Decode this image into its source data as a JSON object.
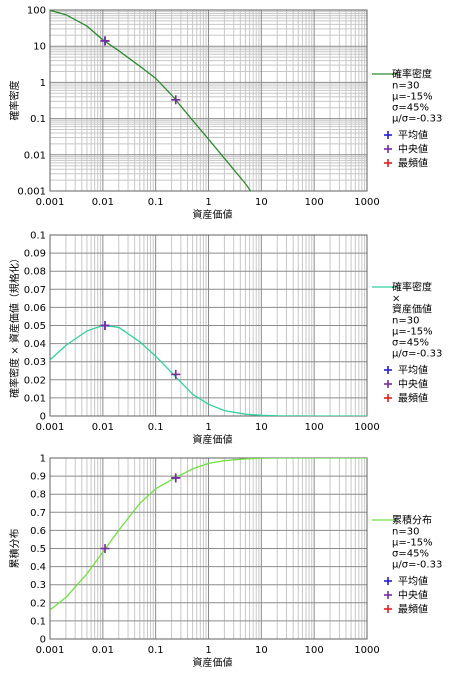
{
  "chart_data": [
    {
      "type": "line",
      "xscale": "log",
      "yscale": "log",
      "xlabel": "資産価値",
      "ylabel": "確率密度",
      "xlim": [
        0.001,
        1000
      ],
      "ylim": [
        0.001,
        100
      ],
      "x_ticks": [
        "0.001",
        "0.01",
        "0.1",
        "1",
        "10",
        "100",
        "1000"
      ],
      "y_ticks": [
        "0.001",
        "0.01",
        "0.1",
        "1",
        "10",
        "100"
      ],
      "grid": true,
      "legend_position": "right",
      "legend_lines": [
        "確率密度",
        "n=30",
        "μ=-15%",
        "σ=45%",
        "μ/σ=-0.33"
      ],
      "series_color": "#2e8b2e",
      "series": [
        {
          "name": "確率密度",
          "x": [
            0.001,
            0.002,
            0.005,
            0.01,
            0.02,
            0.05,
            0.1,
            0.2,
            0.5,
            1,
            2,
            5,
            7
          ],
          "values": [
            98,
            74,
            36,
            15,
            7.5,
            2.8,
            1.3,
            0.45,
            0.09,
            0.027,
            0.008,
            0.0016,
            0.0008
          ]
        }
      ],
      "markers": [
        {
          "label": "平均値",
          "color": "#2020d0",
          "x": [
            0.011
          ],
          "y": [
            14
          ]
        },
        {
          "label": "中央値",
          "color": "#7a2aa0",
          "x": [
            0.011,
            0.24
          ],
          "y": [
            14,
            0.33
          ]
        },
        {
          "label": "最頻値",
          "color": "#e02020",
          "x": [],
          "y": []
        }
      ]
    },
    {
      "type": "line",
      "xscale": "log",
      "yscale": "linear",
      "xlabel": "資産価値",
      "ylabel": "確率密度 × 資産価値（規格化）",
      "xlim": [
        0.001,
        1000
      ],
      "ylim": [
        0,
        0.1
      ],
      "x_ticks": [
        "0.001",
        "0.01",
        "0.1",
        "1",
        "10",
        "100",
        "1000"
      ],
      "y_ticks": [
        "0",
        "0.01",
        "0.02",
        "0.03",
        "0.04",
        "0.05",
        "0.06",
        "0.07",
        "0.08",
        "0.09",
        "0.1"
      ],
      "grid": true,
      "legend_position": "right",
      "legend_lines": [
        "確率密度",
        "×",
        "資産価値",
        "n=30",
        "μ=-15%",
        "σ=45%",
        "μ/σ=-0.33"
      ],
      "series_color": "#30d0a0",
      "series": [
        {
          "name": "確率密度 × 資産価値",
          "x": [
            0.001,
            0.002,
            0.005,
            0.01,
            0.02,
            0.05,
            0.1,
            0.2,
            0.5,
            1,
            2,
            5,
            10,
            20,
            50,
            100,
            1000
          ],
          "values": [
            0.031,
            0.039,
            0.047,
            0.05,
            0.049,
            0.041,
            0.033,
            0.024,
            0.012,
            0.0065,
            0.003,
            0.001,
            0.0004,
            0.0001,
            3e-05,
            0.0,
            0.0
          ]
        }
      ],
      "markers": [
        {
          "label": "平均値",
          "color": "#2020d0",
          "x": [
            0.011
          ],
          "y": [
            0.05
          ]
        },
        {
          "label": "中央値",
          "color": "#7a2aa0",
          "x": [
            0.011,
            0.24
          ],
          "y": [
            0.05,
            0.023
          ]
        },
        {
          "label": "最頻値",
          "color": "#e02020",
          "x": [],
          "y": []
        }
      ]
    },
    {
      "type": "line",
      "xscale": "log",
      "yscale": "linear",
      "xlabel": "資産価値",
      "ylabel": "累積分布",
      "xlim": [
        0.001,
        1000
      ],
      "ylim": [
        0,
        1
      ],
      "x_ticks": [
        "0.001",
        "0.01",
        "0.1",
        "1",
        "10",
        "100",
        "1000"
      ],
      "y_ticks": [
        "0",
        "0.1",
        "0.2",
        "0.3",
        "0.4",
        "0.5",
        "0.6",
        "0.7",
        "0.8",
        "0.9",
        "1"
      ],
      "grid": true,
      "legend_position": "right",
      "legend_lines": [
        "累積分布",
        "n=30",
        "μ=-15%",
        "σ=45%",
        "μ/σ=-0.33"
      ],
      "series_color": "#70e040",
      "series": [
        {
          "name": "累積分布",
          "x": [
            0.001,
            0.002,
            0.005,
            0.01,
            0.02,
            0.05,
            0.1,
            0.2,
            0.5,
            1,
            2,
            5,
            10,
            20,
            50,
            100,
            1000
          ],
          "values": [
            0.16,
            0.23,
            0.36,
            0.48,
            0.6,
            0.75,
            0.83,
            0.88,
            0.94,
            0.97,
            0.985,
            0.995,
            0.999,
            1.0,
            1.0,
            1.0,
            1.0
          ]
        }
      ],
      "markers": [
        {
          "label": "平均値",
          "color": "#2020d0",
          "x": [
            0.24
          ],
          "y": [
            0.89
          ]
        },
        {
          "label": "中央値",
          "color": "#7a2aa0",
          "x": [
            0.011,
            0.24
          ],
          "y": [
            0.5,
            0.89
          ]
        },
        {
          "label": "最頻値",
          "color": "#e02020",
          "x": [],
          "y": []
        }
      ]
    }
  ]
}
